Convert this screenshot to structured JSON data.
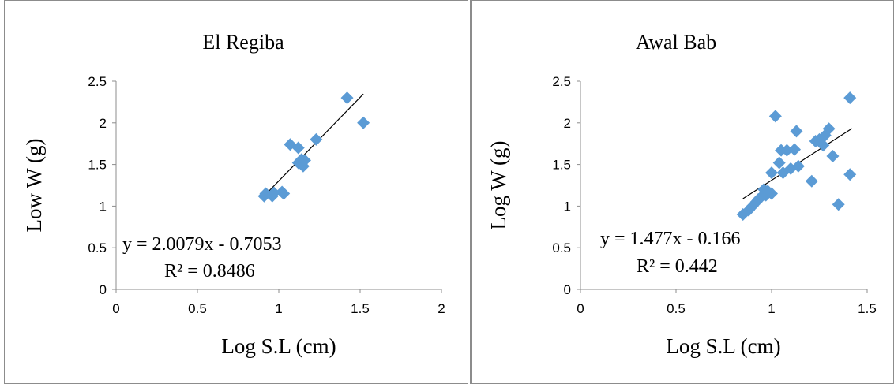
{
  "chart_data": [
    {
      "type": "scatter",
      "title": "El Regiba",
      "xlabel": "Log S.L (cm)",
      "ylabel": "Low W (g)",
      "xlim": [
        0,
        2
      ],
      "ylim": [
        0,
        2.5
      ],
      "xticks": [
        "0",
        "0.5",
        "1",
        "1.5",
        "2"
      ],
      "yticks": [
        "0",
        "0.5",
        "1",
        "1.5",
        "2",
        "2.5"
      ],
      "grid": false,
      "marker": "diamond",
      "color": "#5b9bd5",
      "points": [
        [
          0.91,
          1.12
        ],
        [
          0.92,
          1.15
        ],
        [
          0.96,
          1.12
        ],
        [
          0.97,
          1.16
        ],
        [
          1.02,
          1.17
        ],
        [
          1.03,
          1.15
        ],
        [
          1.07,
          1.74
        ],
        [
          1.12,
          1.7
        ],
        [
          1.12,
          1.52
        ],
        [
          1.14,
          1.56
        ],
        [
          1.15,
          1.48
        ],
        [
          1.16,
          1.55
        ],
        [
          1.23,
          1.8
        ],
        [
          1.42,
          2.3
        ],
        [
          1.52,
          2.0
        ]
      ],
      "trendline": {
        "type": "linear",
        "slope": 2.0079,
        "intercept": -0.7053,
        "x_range": [
          0.9,
          1.52
        ]
      },
      "equation": "y = 2.0079x - 0.7053",
      "r2": "R² = 0.8486"
    },
    {
      "type": "scatter",
      "title": "Awal Bab",
      "xlabel": "Log S.L (cm)",
      "ylabel": "Log W (g)",
      "xlim": [
        0,
        1.5
      ],
      "ylim": [
        0,
        2.5
      ],
      "xticks": [
        "0",
        "0.5",
        "1",
        "1.5"
      ],
      "yticks": [
        "0",
        "0.5",
        "1",
        "1.5",
        "2",
        "2.5"
      ],
      "grid": false,
      "marker": "diamond",
      "color": "#5b9bd5",
      "points": [
        [
          0.85,
          0.9
        ],
        [
          0.88,
          0.95
        ],
        [
          0.9,
          1.0
        ],
        [
          0.92,
          1.05
        ],
        [
          0.93,
          1.08
        ],
        [
          0.95,
          1.12
        ],
        [
          0.96,
          1.2
        ],
        [
          0.97,
          1.13
        ],
        [
          0.98,
          1.18
        ],
        [
          1.0,
          1.15
        ],
        [
          1.0,
          1.4
        ],
        [
          1.02,
          2.08
        ],
        [
          1.04,
          1.52
        ],
        [
          1.05,
          1.67
        ],
        [
          1.06,
          1.4
        ],
        [
          1.08,
          1.67
        ],
        [
          1.1,
          1.45
        ],
        [
          1.12,
          1.68
        ],
        [
          1.13,
          1.9
        ],
        [
          1.14,
          1.48
        ],
        [
          1.21,
          1.3
        ],
        [
          1.23,
          1.78
        ],
        [
          1.25,
          1.8
        ],
        [
          1.27,
          1.73
        ],
        [
          1.28,
          1.85
        ],
        [
          1.3,
          1.93
        ],
        [
          1.32,
          1.6
        ],
        [
          1.35,
          1.02
        ],
        [
          1.41,
          1.38
        ],
        [
          1.41,
          2.3
        ]
      ],
      "trendline": {
        "type": "linear",
        "slope": 1.477,
        "intercept": -0.166,
        "x_range": [
          0.85,
          1.42
        ]
      },
      "equation": "y = 1.477x - 0.166",
      "r2": "R² = 0.442"
    }
  ]
}
